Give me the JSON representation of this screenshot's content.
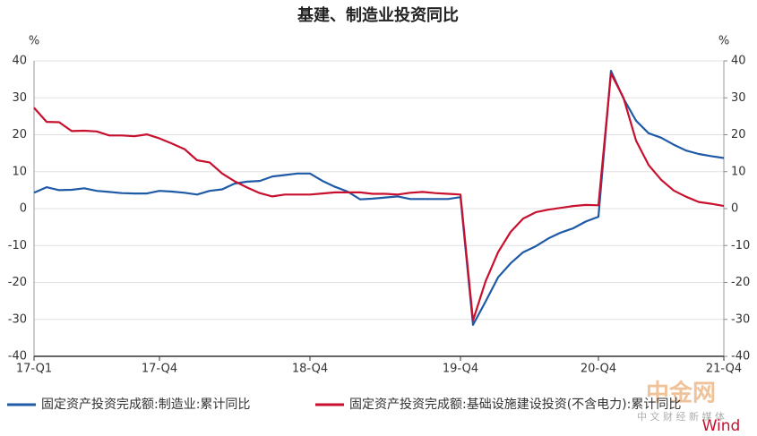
{
  "chart_data": {
    "type": "line",
    "title": "基建、制造业投资同比",
    "y_unit": "%",
    "y2_unit": "%",
    "categories": [
      "17-Q1",
      null,
      null,
      null,
      null,
      null,
      null,
      null,
      null,
      null,
      "17-Q4",
      null,
      null,
      null,
      null,
      null,
      null,
      null,
      null,
      null,
      null,
      null,
      "18-Q4",
      null,
      null,
      null,
      null,
      null,
      null,
      null,
      null,
      null,
      null,
      null,
      "19-Q4",
      null,
      null,
      null,
      null,
      null,
      null,
      null,
      null,
      null,
      null,
      "20-Q4",
      null,
      null,
      null,
      null,
      null,
      null,
      null,
      null,
      null,
      "21-Q4"
    ],
    "series": [
      {
        "name": "固定资产投资完成额:制造业:累计同比",
        "color": "#1f5aa6",
        "values": [
          4.3,
          5.8,
          5.0,
          5.1,
          5.5,
          4.8,
          4.5,
          4.2,
          4.1,
          4.1,
          4.8,
          4.6,
          4.3,
          3.8,
          4.8,
          5.2,
          6.8,
          7.3,
          7.5,
          8.7,
          9.1,
          9.5,
          9.5,
          7.5,
          5.9,
          4.6,
          2.5,
          2.7,
          3.0,
          3.3,
          2.6,
          2.6,
          2.6,
          2.6,
          3.1,
          -31.5,
          -25.2,
          -18.6,
          -14.8,
          -11.8,
          -10.2,
          -8.1,
          -6.5,
          -5.3,
          -3.5,
          -2.2,
          37.3,
          29.8,
          23.8,
          20.4,
          19.2,
          17.3,
          15.7,
          14.8,
          14.2,
          13.7
        ]
      },
      {
        "name": "固定资产投资完成额:基础设施建设投资(不含电力):累计同比",
        "color": "#c8102e",
        "values": [
          27.3,
          23.5,
          23.4,
          21.0,
          21.1,
          20.9,
          19.8,
          19.8,
          19.6,
          20.1,
          19.0,
          17.6,
          16.1,
          13.1,
          12.5,
          9.5,
          7.4,
          5.7,
          4.2,
          3.3,
          3.8,
          3.8,
          3.8,
          4.1,
          4.4,
          4.4,
          4.4,
          4.0,
          4.0,
          3.8,
          4.3,
          4.5,
          4.2,
          4.0,
          3.8,
          -30.3,
          -19.7,
          -11.8,
          -6.3,
          -2.7,
          -1.0,
          -0.3,
          0.2,
          0.7,
          1.0,
          0.9,
          36.6,
          30.0,
          18.4,
          11.8,
          7.8,
          4.9,
          3.2,
          1.8,
          1.3,
          0.7
        ]
      }
    ],
    "ylim": [
      -40,
      40
    ],
    "yticks": [
      -40,
      -30,
      -20,
      -10,
      0,
      10,
      20,
      30,
      40
    ],
    "y2lim": [
      -40,
      40
    ],
    "y2ticks": [
      -40,
      -30,
      -20,
      -10,
      0,
      10,
      20,
      30,
      40
    ],
    "grid": true,
    "legend": "bottom"
  },
  "watermark": {
    "logo": "中金网",
    "tagline": "中 文 财 经 新 媒 体",
    "source": "Wind"
  }
}
